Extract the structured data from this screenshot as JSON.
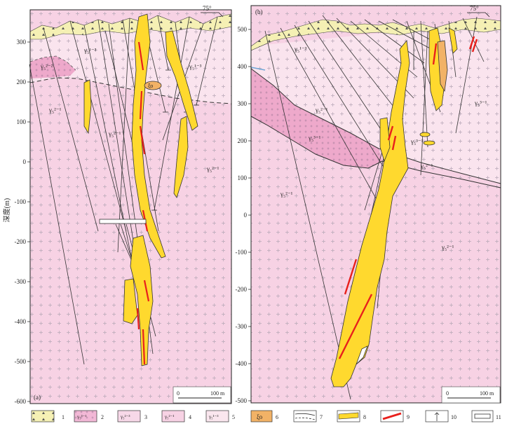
{
  "figure": {
    "y_axis_label": "深度(m)",
    "panel_a": {
      "label": "(a)",
      "y_ticks": [
        "300",
        "200",
        "100",
        "0",
        "-100",
        "-200",
        "-300",
        "-400",
        "-500",
        "-600"
      ],
      "strike": "75°",
      "scale_zero": "0",
      "scale_end": "100 m",
      "unit_labels": [
        "γ₅¹⁻³",
        "γ₅¹⁻³",
        "γ₅²⁻²",
        "γ₅²⁻¹",
        "γ₅²⁻¹",
        "γ₅²⁻¹"
      ],
      "syenite_label": "ξο"
    },
    "panel_b": {
      "label": "(b)",
      "y_ticks": [
        "500",
        "400",
        "300",
        "200",
        "100",
        "0",
        "-100",
        "-200",
        "-300",
        "-400",
        "-500"
      ],
      "strike": "75°",
      "scale_zero": "0",
      "scale_end": "100 m",
      "unit_labels": [
        "γ₅¹⁻³",
        "γ₅³⁻¹",
        "γ₅²⁻¹",
        "γ₅²⁻¹",
        "γ₅²⁻¹",
        "γ₅³⁻¹",
        "γ₅³⁻¹",
        "γ₅²⁻¹"
      ]
    },
    "legend": [
      {
        "num": "1",
        "symbol": "△ △",
        "fill": "#f5f0b4"
      },
      {
        "num": "2",
        "symbol": "γ₅³⁻¹",
        "fill": "#f2b8d6"
      },
      {
        "num": "3",
        "symbol": "γ₅²⁻³",
        "fill": "#f7d8e8"
      },
      {
        "num": "4",
        "symbol": "γ₅²⁻¹",
        "fill": "#f7d2e4"
      },
      {
        "num": "5",
        "symbol": "γ₅¹⁻³",
        "fill": "#fae6ee"
      },
      {
        "num": "6",
        "symbol": "ξο",
        "fill": "#f2b266"
      },
      {
        "num": "7",
        "symbol": "",
        "fill": "#ffffff"
      },
      {
        "num": "8",
        "symbol": "",
        "fill": "#ffffff"
      },
      {
        "num": "9",
        "symbol": "",
        "fill": "#ffffff"
      },
      {
        "num": "10",
        "symbol": "",
        "fill": "#ffffff"
      },
      {
        "num": "11",
        "symbol": "",
        "fill": "#ffffff"
      }
    ],
    "colors": {
      "granite_pink": "#f7d2e4",
      "granite_light": "#fae4ee",
      "granite_dark": "#eea9cb",
      "overburden": "#f5f0b4",
      "ore_body": "#ffd92e",
      "high_grade": "#e8201c",
      "syenite": "#f2b266"
    }
  }
}
